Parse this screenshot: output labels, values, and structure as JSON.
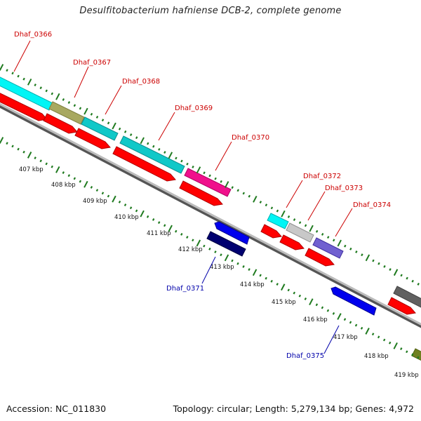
{
  "title": "Desulfitobacterium hafniense DCB-2, complete genome",
  "footer": {
    "accession": "Accession: NC_011830",
    "info": "Topology: circular; Length: 5,279,134 bp; Genes: 4,972"
  },
  "colors": {
    "forward_label": "#cc0000",
    "reverse_label": "#0000aa",
    "tick_green": "#1f7a1f",
    "backbone": "#888888",
    "cds_red": "#ff0000"
  },
  "scale_labels": [
    "407 kbp",
    "408 kbp",
    "409 kbp",
    "410 kbp",
    "411 kbp",
    "412 kbp",
    "413 kbp",
    "414 kbp",
    "415 kbp",
    "416 kbp",
    "417 kbp",
    "418 kbp",
    "419 kbp"
  ],
  "forward_genes": [
    {
      "name": "Dhaf_0366",
      "color": "#00f5f5"
    },
    {
      "name": "Dhaf_0367",
      "color": "#a8a860"
    },
    {
      "name": "Dhaf_0368",
      "color": "#10c8c8"
    },
    {
      "name": "Dhaf_0369",
      "color": "#10c8c8"
    },
    {
      "name": "Dhaf_0370",
      "color": "#f0108c"
    },
    {
      "name": "Dhaf_0372",
      "color": "#00f5f5"
    },
    {
      "name": "Dhaf_0373",
      "color": "#c8c8c8"
    },
    {
      "name": "Dhaf_0374",
      "color": "#7060d0"
    }
  ],
  "reverse_genes": [
    {
      "name": "Dhaf_0371",
      "color": "#0000ee",
      "cog_color": "#000070"
    },
    {
      "name": "Dhaf_0375",
      "color": "#0000ee"
    }
  ]
}
